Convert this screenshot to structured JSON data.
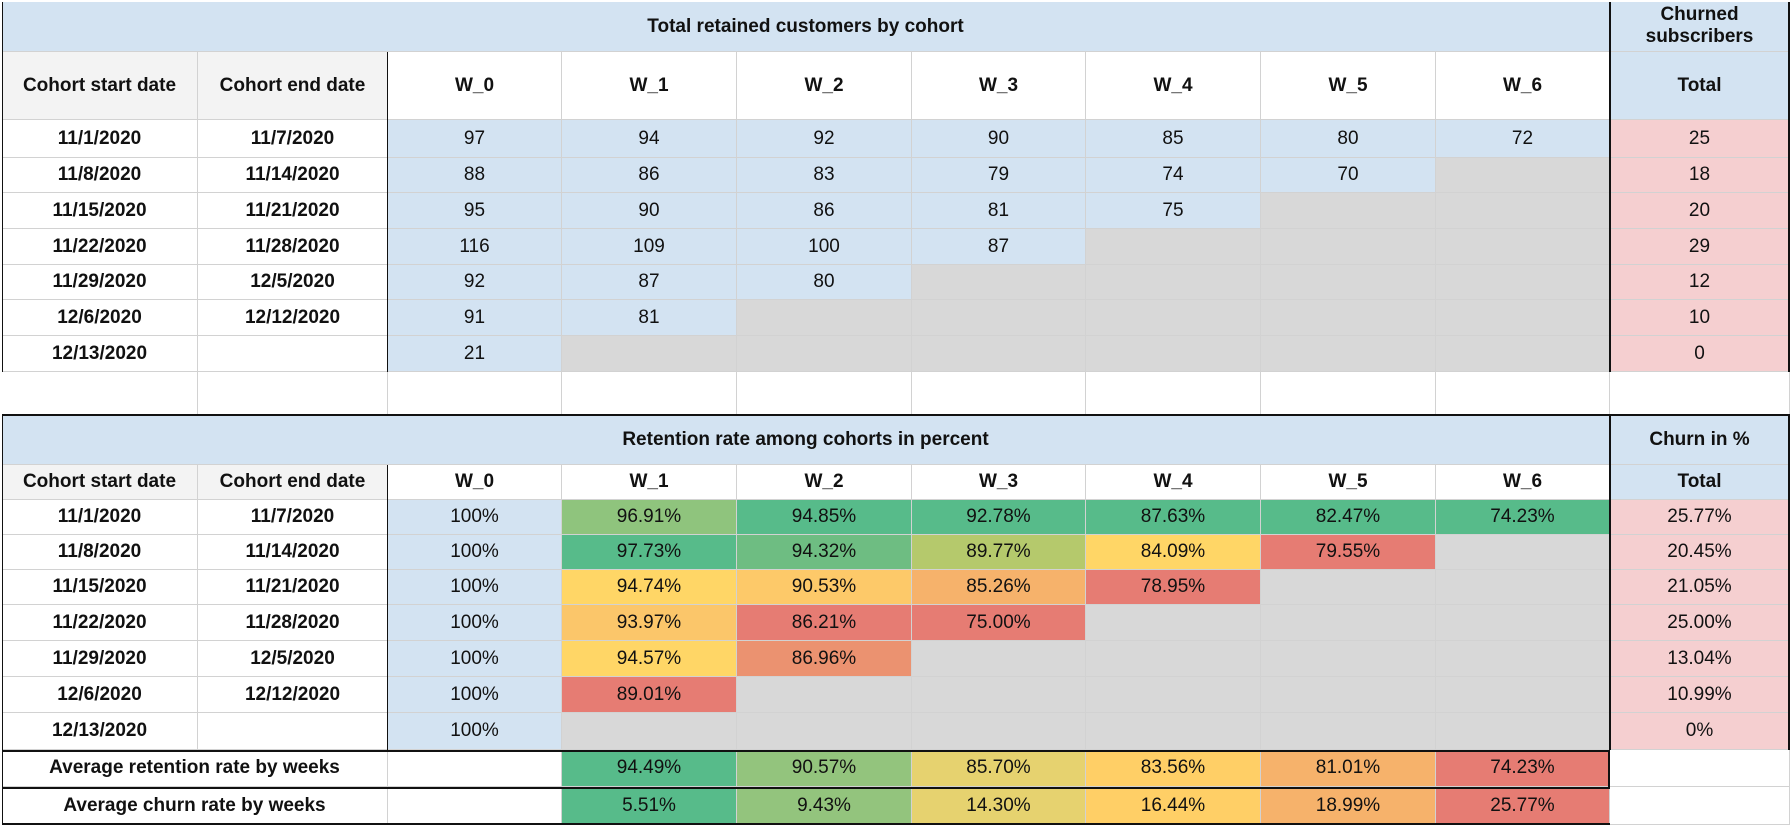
{
  "top": {
    "title": "Total retained customers by cohort",
    "side_title": "Churned subscribers",
    "headers": [
      "Cohort start date",
      "Cohort end date",
      "W_0",
      "W_1",
      "W_2",
      "W_3",
      "W_4",
      "W_5",
      "W_6",
      "Total"
    ],
    "rows": [
      {
        "start": "11/1/2020",
        "end": "11/7/2020",
        "weeks": [
          "97",
          "94",
          "92",
          "90",
          "85",
          "80",
          "72"
        ],
        "total": "25"
      },
      {
        "start": "11/8/2020",
        "end": "11/14/2020",
        "weeks": [
          "88",
          "86",
          "83",
          "79",
          "74",
          "70"
        ],
        "total": "18"
      },
      {
        "start": "11/15/2020",
        "end": "11/21/2020",
        "weeks": [
          "95",
          "90",
          "86",
          "81",
          "75"
        ],
        "total": "20"
      },
      {
        "start": "11/22/2020",
        "end": "11/28/2020",
        "weeks": [
          "116",
          "109",
          "100",
          "87"
        ],
        "total": "29"
      },
      {
        "start": "11/29/2020",
        "end": "12/5/2020",
        "weeks": [
          "92",
          "87",
          "80"
        ],
        "total": "12"
      },
      {
        "start": "12/6/2020",
        "end": "12/12/2020",
        "weeks": [
          "91",
          "81"
        ],
        "total": "10"
      },
      {
        "start": "12/13/2020",
        "end": "",
        "weeks": [
          "21"
        ],
        "total": "0"
      }
    ]
  },
  "bottom": {
    "title": "Retention rate among cohorts in percent",
    "side_title": "Churn in %",
    "headers": [
      "Cohort start date",
      "Cohort end date",
      "W_0",
      "W_1",
      "W_2",
      "W_3",
      "W_4",
      "W_5",
      "W_6",
      "Total"
    ],
    "rows": [
      {
        "start": "11/1/2020",
        "end": "11/7/2020",
        "weeks": [
          "100%",
          "96.91%",
          "94.85%",
          "92.78%",
          "87.63%",
          "82.47%",
          "74.23%"
        ],
        "colors": [
          "#8fc47d",
          "#57bb8a",
          "#57bb8a",
          "#57bb8a",
          "#57bb8a",
          "#57bb8a"
        ],
        "total": "25.77%"
      },
      {
        "start": "11/8/2020",
        "end": "11/14/2020",
        "weeks": [
          "100%",
          "97.73%",
          "94.32%",
          "89.77%",
          "84.09%",
          "79.55%"
        ],
        "colors": [
          "#57bb8a",
          "#6ebd82",
          "#b5c96c",
          "#ffd666",
          "#e67c73"
        ],
        "total": "20.45%"
      },
      {
        "start": "11/15/2020",
        "end": "11/21/2020",
        "weeks": [
          "100%",
          "94.74%",
          "90.53%",
          "85.26%",
          "78.95%"
        ],
        "colors": [
          "#ffd666",
          "#fdc969",
          "#f6b26b",
          "#e67c73"
        ],
        "total": "21.05%"
      },
      {
        "start": "11/22/2020",
        "end": "11/28/2020",
        "weeks": [
          "100%",
          "93.97%",
          "86.21%",
          "75.00%"
        ],
        "colors": [
          "#fbc66a",
          "#e67c73",
          "#e67c73"
        ],
        "total": "25.00%"
      },
      {
        "start": "11/29/2020",
        "end": "12/5/2020",
        "weeks": [
          "100%",
          "94.57%",
          "86.96%"
        ],
        "colors": [
          "#ffd666",
          "#eb9270"
        ],
        "total": "13.04%"
      },
      {
        "start": "12/6/2020",
        "end": "12/12/2020",
        "weeks": [
          "100%",
          "89.01%"
        ],
        "colors": [
          "#e67c73"
        ],
        "total": "10.99%"
      },
      {
        "start": "12/13/2020",
        "end": "",
        "weeks": [
          "100%"
        ],
        "colors": [],
        "total": "0%"
      }
    ],
    "avg_retention_label": "Average retention rate by weeks",
    "avg_retention": [
      "94.49%",
      "90.57%",
      "85.70%",
      "83.56%",
      "81.01%",
      "74.23%"
    ],
    "avg_retention_colors": [
      "#57bb8a",
      "#93c47d",
      "#e6d26f",
      "#ffcf66",
      "#f6b26b",
      "#e67c73"
    ],
    "avg_churn_label": "Average churn rate by weeks",
    "avg_churn": [
      "5.51%",
      "9.43%",
      "14.30%",
      "16.44%",
      "18.99%",
      "25.77%"
    ],
    "avg_churn_colors": [
      "#57bb8a",
      "#93c47d",
      "#e6d26f",
      "#ffcf66",
      "#f6b26b",
      "#e67c73"
    ]
  },
  "colors": {
    "header_blue": "#d3e3f2",
    "empty_grey": "#d8d8d8",
    "churn_pink": "#f5cfd0"
  }
}
